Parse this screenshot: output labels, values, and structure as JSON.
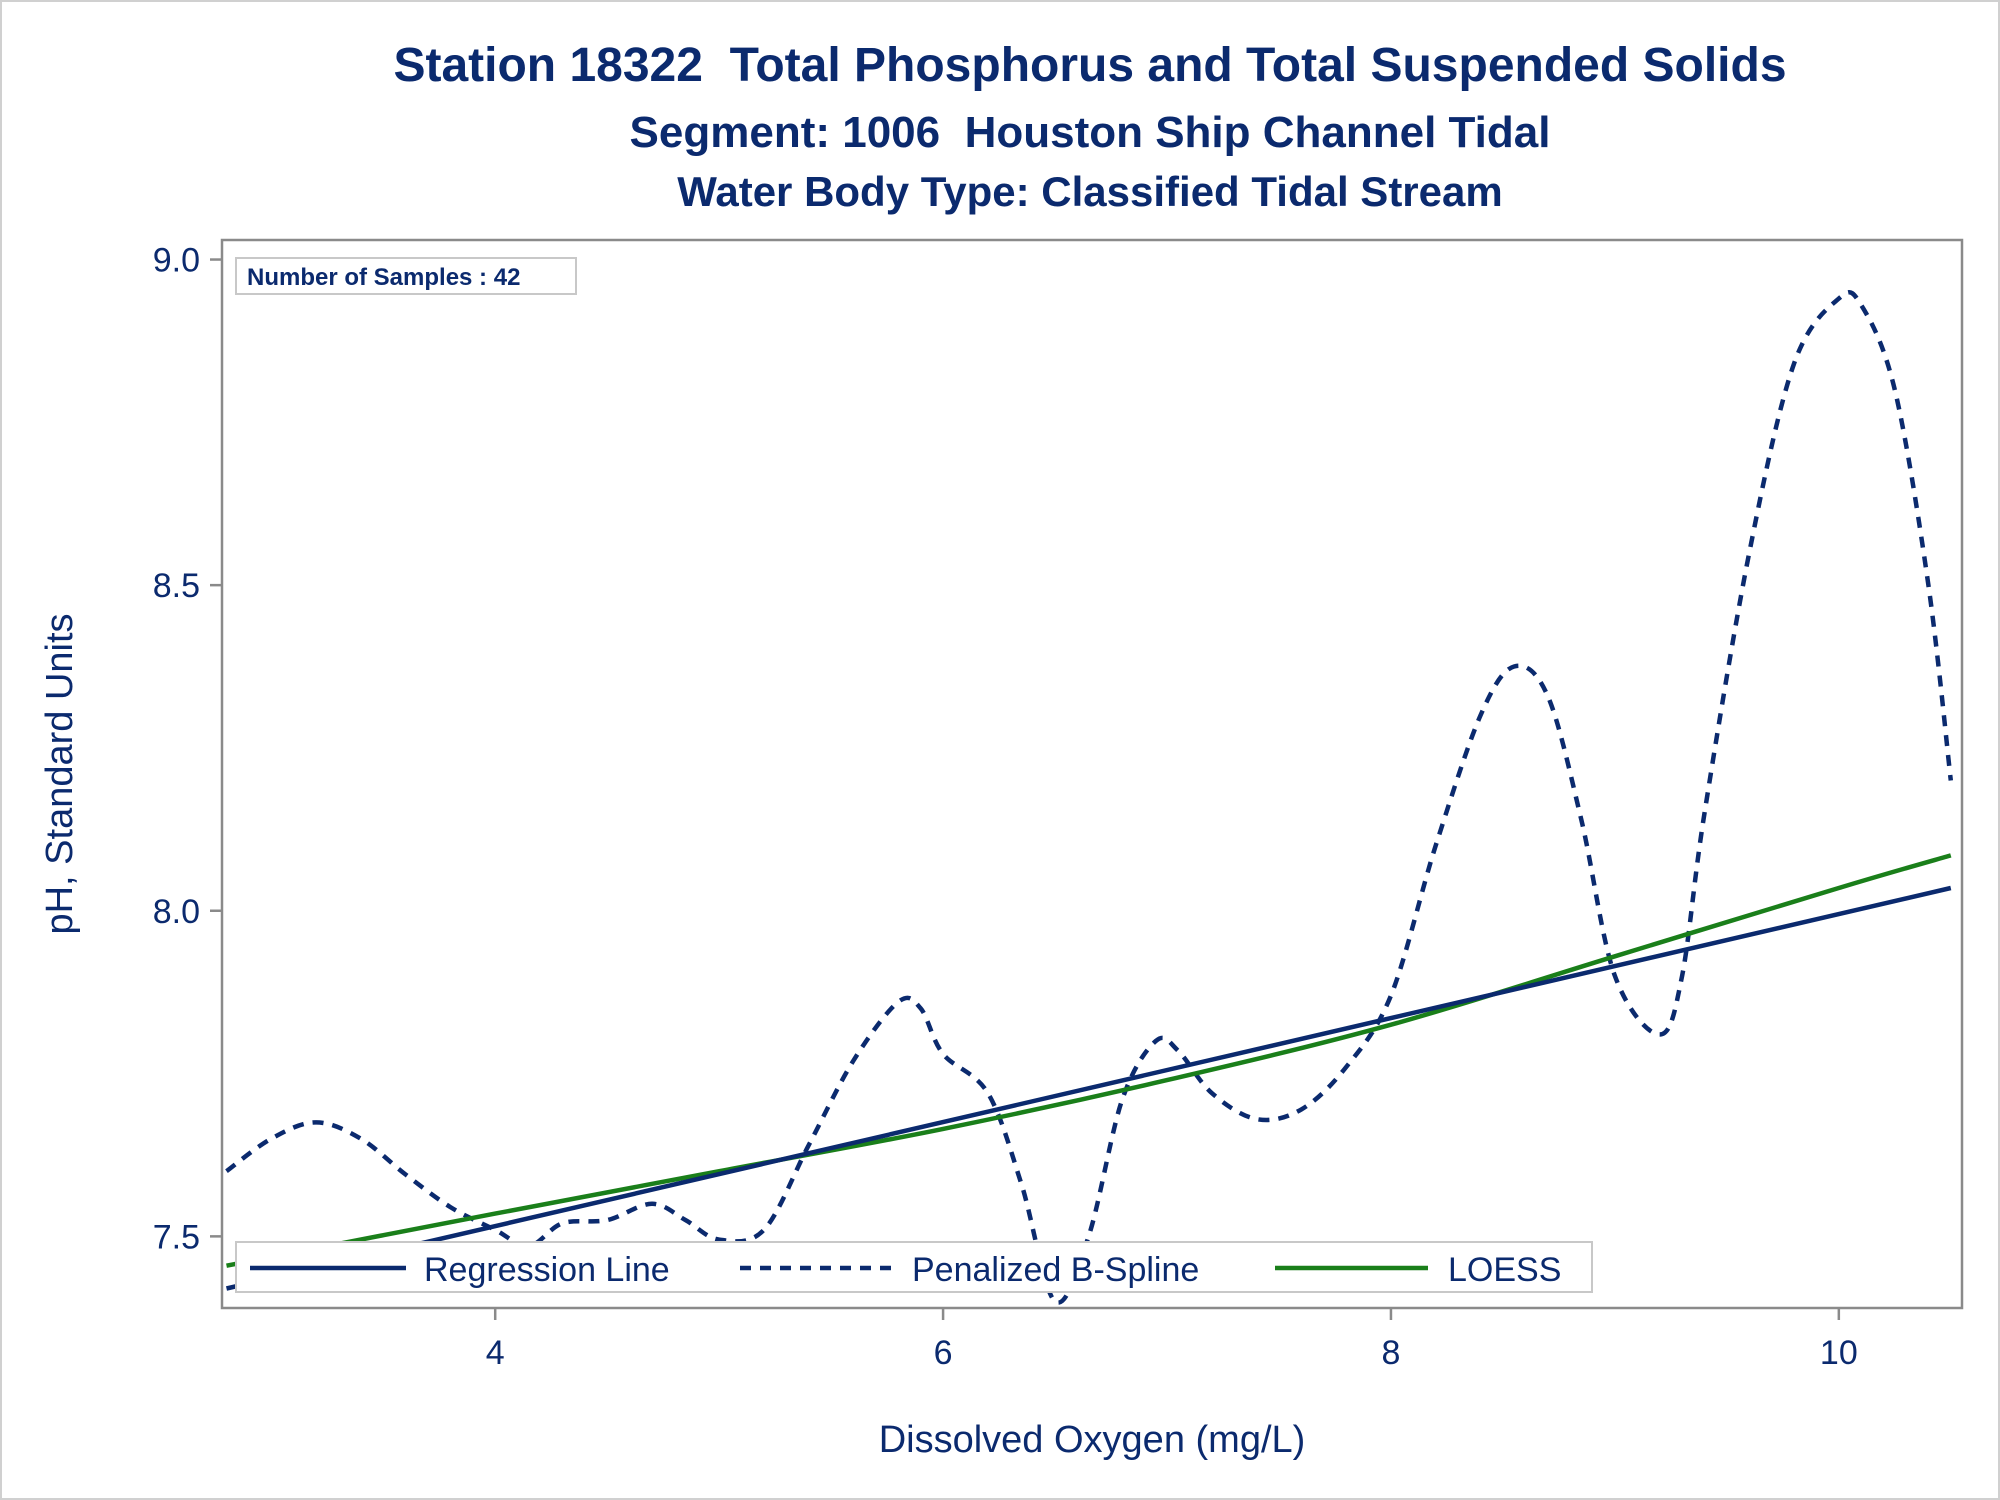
{
  "titles": {
    "line1": "Station 18322  Total Phosphorus and Total Suspended Solids",
    "line2": "Segment: 1006  Houston Ship Channel Tidal",
    "line3": "Water Body Type: Classified Tidal Stream"
  },
  "inset": {
    "text": "Number of Samples : 42"
  },
  "chart_data": {
    "type": "line",
    "title": "Station 18322  Total Phosphorus and Total Suspended Solids",
    "subtitle": [
      "Segment: 1006  Houston Ship Channel Tidal",
      "Water Body Type: Classified Tidal Stream"
    ],
    "xlabel": "Dissolved Oxygen (mg/L)",
    "ylabel": "pH, Standard Units",
    "xlim": [
      2.78,
      10.55
    ],
    "ylim": [
      7.39,
      9.03
    ],
    "xticks": [
      4,
      6,
      8,
      10
    ],
    "xtick_labels": [
      "4",
      "6",
      "8",
      "10"
    ],
    "yticks": [
      7.5,
      8.0,
      8.5,
      9.0
    ],
    "ytick_labels": [
      "7.5",
      "8.0",
      "8.5",
      "9.0"
    ],
    "grid": false,
    "legend_position": "bottom-left inside",
    "series": [
      {
        "name": "Regression Line",
        "style": "solid",
        "color": "#0b2a6e",
        "x": [
          2.8,
          10.5
        ],
        "y": [
          7.42,
          8.035
        ]
      },
      {
        "name": "Penalized B-Spline",
        "style": "dashed",
        "color": "#0b2a6e",
        "x": [
          2.8,
          3.0,
          3.2,
          3.4,
          3.6,
          3.8,
          4.0,
          4.15,
          4.3,
          4.5,
          4.7,
          4.85,
          5.0,
          5.2,
          5.4,
          5.6,
          5.8,
          5.9,
          6.0,
          6.2,
          6.35,
          6.5,
          6.65,
          6.8,
          6.95,
          7.05,
          7.2,
          7.4,
          7.6,
          7.8,
          8.0,
          8.2,
          8.4,
          8.55,
          8.7,
          8.85,
          9.0,
          9.2,
          9.3,
          9.4,
          9.6,
          9.8,
          10.0,
          10.1,
          10.25,
          10.4,
          10.5
        ],
        "y": [
          7.6,
          7.65,
          7.675,
          7.65,
          7.595,
          7.545,
          7.51,
          7.485,
          7.52,
          7.525,
          7.55,
          7.525,
          7.495,
          7.51,
          7.64,
          7.77,
          7.86,
          7.85,
          7.78,
          7.72,
          7.58,
          7.4,
          7.5,
          7.71,
          7.8,
          7.785,
          7.72,
          7.68,
          7.695,
          7.76,
          7.87,
          8.1,
          8.3,
          8.375,
          8.33,
          8.14,
          7.9,
          7.81,
          7.9,
          8.15,
          8.55,
          8.84,
          8.94,
          8.93,
          8.8,
          8.5,
          8.2
        ]
      },
      {
        "name": "LOESS",
        "style": "solid",
        "color": "#1a7f1a",
        "x": [
          2.8,
          4.0,
          5.0,
          6.0,
          7.0,
          8.0,
          9.0,
          10.0,
          10.5
        ],
        "y": [
          7.455,
          7.535,
          7.6,
          7.665,
          7.74,
          7.825,
          7.93,
          8.035,
          8.085
        ]
      }
    ]
  }
}
